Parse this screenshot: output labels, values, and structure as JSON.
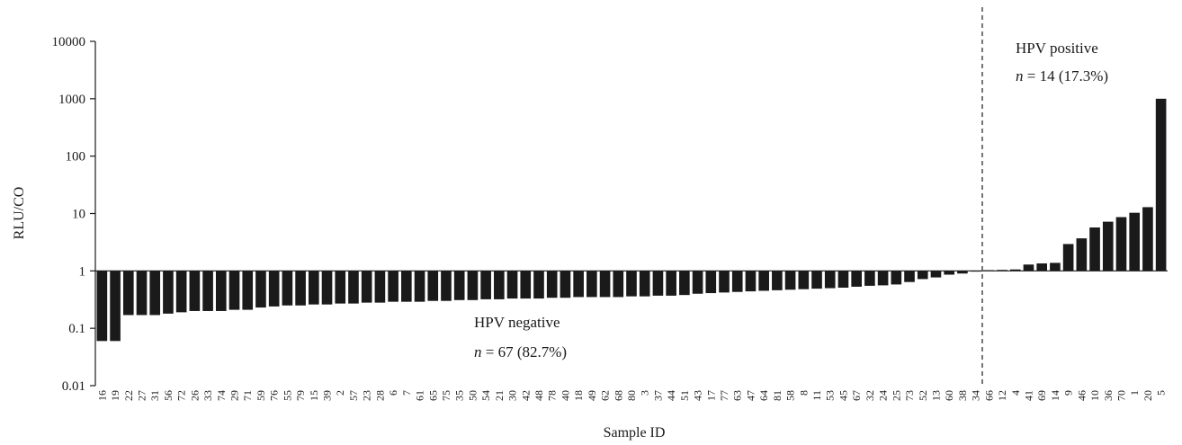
{
  "chart_data": {
    "type": "bar",
    "title": "",
    "xlabel": "Sample ID",
    "ylabel": "RLU/CO",
    "yscale": "log",
    "baseline": 1,
    "ylim": [
      0.01,
      10000
    ],
    "yticks": [
      "0.01",
      "0.1",
      "1",
      "10",
      "100",
      "1000",
      "10000"
    ],
    "grid": false,
    "bar_color": "#1a1a1a",
    "categories": [
      "16",
      "19",
      "22",
      "27",
      "31",
      "56",
      "72",
      "26",
      "33",
      "74",
      "29",
      "71",
      "59",
      "76",
      "55",
      "79",
      "15",
      "39",
      "2",
      "57",
      "23",
      "28",
      "6",
      "7",
      "61",
      "65",
      "75",
      "35",
      "50",
      "54",
      "21",
      "30",
      "42",
      "48",
      "78",
      "40",
      "18",
      "49",
      "62",
      "68",
      "80",
      "3",
      "37",
      "44",
      "51",
      "43",
      "17",
      "77",
      "63",
      "47",
      "64",
      "81",
      "58",
      "8",
      "11",
      "53",
      "45",
      "67",
      "32",
      "24",
      "25",
      "73",
      "52",
      "13",
      "60",
      "38",
      "34",
      "66",
      "12",
      "4",
      "41",
      "69",
      "14",
      "9",
      "46",
      "10",
      "36",
      "70",
      "1",
      "20",
      "5"
    ],
    "values": [
      0.06,
      0.06,
      0.17,
      0.17,
      0.17,
      0.18,
      0.19,
      0.2,
      0.2,
      0.2,
      0.21,
      0.21,
      0.23,
      0.24,
      0.25,
      0.25,
      0.26,
      0.26,
      0.27,
      0.27,
      0.28,
      0.28,
      0.29,
      0.29,
      0.29,
      0.3,
      0.3,
      0.31,
      0.31,
      0.32,
      0.32,
      0.33,
      0.33,
      0.33,
      0.34,
      0.34,
      0.35,
      0.35,
      0.35,
      0.35,
      0.36,
      0.36,
      0.37,
      0.37,
      0.38,
      0.4,
      0.41,
      0.42,
      0.43,
      0.44,
      0.45,
      0.46,
      0.47,
      0.48,
      0.49,
      0.5,
      0.51,
      0.53,
      0.55,
      0.56,
      0.58,
      0.64,
      0.72,
      0.77,
      0.86,
      0.9,
      0.98,
      1.03,
      1.04,
      1.06,
      1.29,
      1.35,
      1.38,
      2.94,
      3.69,
      5.71,
      7.2,
      8.65,
      10.3,
      12.9,
      1000
    ],
    "cutoff_after_category": "34",
    "annotations": [
      {
        "line1": "HPV positive",
        "n_italic": "n",
        "line2_rest": " = 14 (17.3%)"
      },
      {
        "line1": "HPV negative",
        "n_italic": "n",
        "line2_rest": " = 67 (82.7%)"
      }
    ]
  }
}
